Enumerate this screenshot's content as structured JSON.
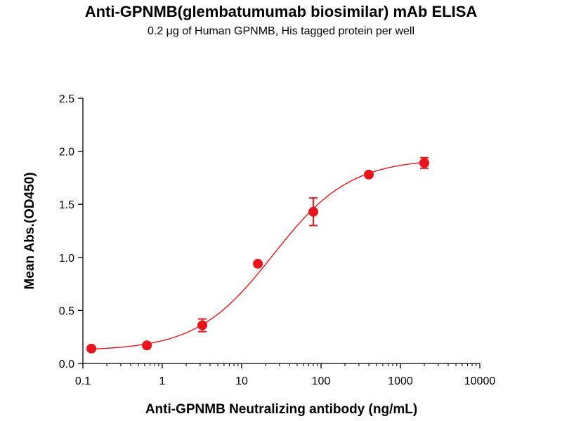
{
  "chart_data": {
    "type": "scatter",
    "title": "Anti-GPNMB(glembatumumab biosimilar) mAb ELISA",
    "subtitle": "0.2 μg of Human GPNMB, His tagged protein per well",
    "xlabel": "Anti-GPNMB Neutralizing antibody  (ng/mL)",
    "ylabel": "Mean Abs.(OD450)",
    "x_scale": "log",
    "xlim": [
      0.1,
      10000
    ],
    "ylim": [
      0,
      2.5
    ],
    "x_ticks": [
      "0.1",
      "1",
      "10",
      "100",
      "1000",
      "10000"
    ],
    "y_ticks": [
      "0.0",
      "0.5",
      "1.0",
      "1.5",
      "2.0",
      "2.5"
    ],
    "grid": false,
    "legend": "none",
    "color": "#e8151c",
    "points": [
      {
        "x": 0.128,
        "y": 0.14,
        "err": 0.02
      },
      {
        "x": 0.64,
        "y": 0.17,
        "err": 0.02
      },
      {
        "x": 3.2,
        "y": 0.36,
        "err": 0.06
      },
      {
        "x": 16,
        "y": 0.94,
        "err": 0.02
      },
      {
        "x": 80,
        "y": 1.43,
        "err": 0.13
      },
      {
        "x": 400,
        "y": 1.78,
        "err": 0.02
      },
      {
        "x": 2000,
        "y": 1.89,
        "err": 0.05
      }
    ],
    "fit": {
      "model": "4PL",
      "bottom": 0.12,
      "top": 1.93,
      "ec50": 25,
      "hill": 0.9
    }
  }
}
